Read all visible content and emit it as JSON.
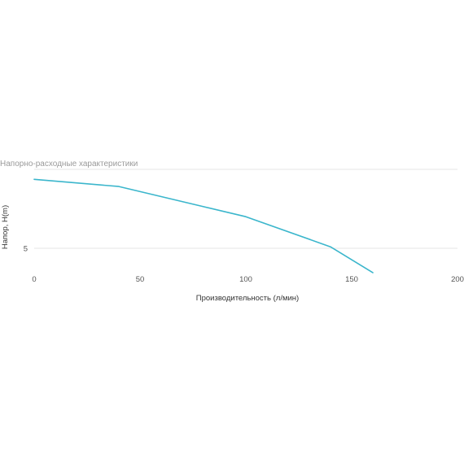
{
  "chart_data": {
    "type": "line",
    "title": "Напорно-расходные характеристики",
    "xlabel": "Производительность (л/мин)",
    "ylabel": "Напор, H(m)",
    "xlim": [
      0,
      200
    ],
    "ylim": [
      2.5,
      10.5
    ],
    "x_ticks": [
      "0",
      "50",
      "100",
      "150",
      "200"
    ],
    "y_ticks": [
      "5"
    ],
    "grid": true,
    "legend": "none",
    "series": [
      {
        "color": "#3bb6cc",
        "x": [
          0,
          40,
          100,
          140,
          160
        ],
        "y": [
          9.8,
          9.3,
          7.2,
          5.1,
          3.3
        ]
      }
    ]
  }
}
